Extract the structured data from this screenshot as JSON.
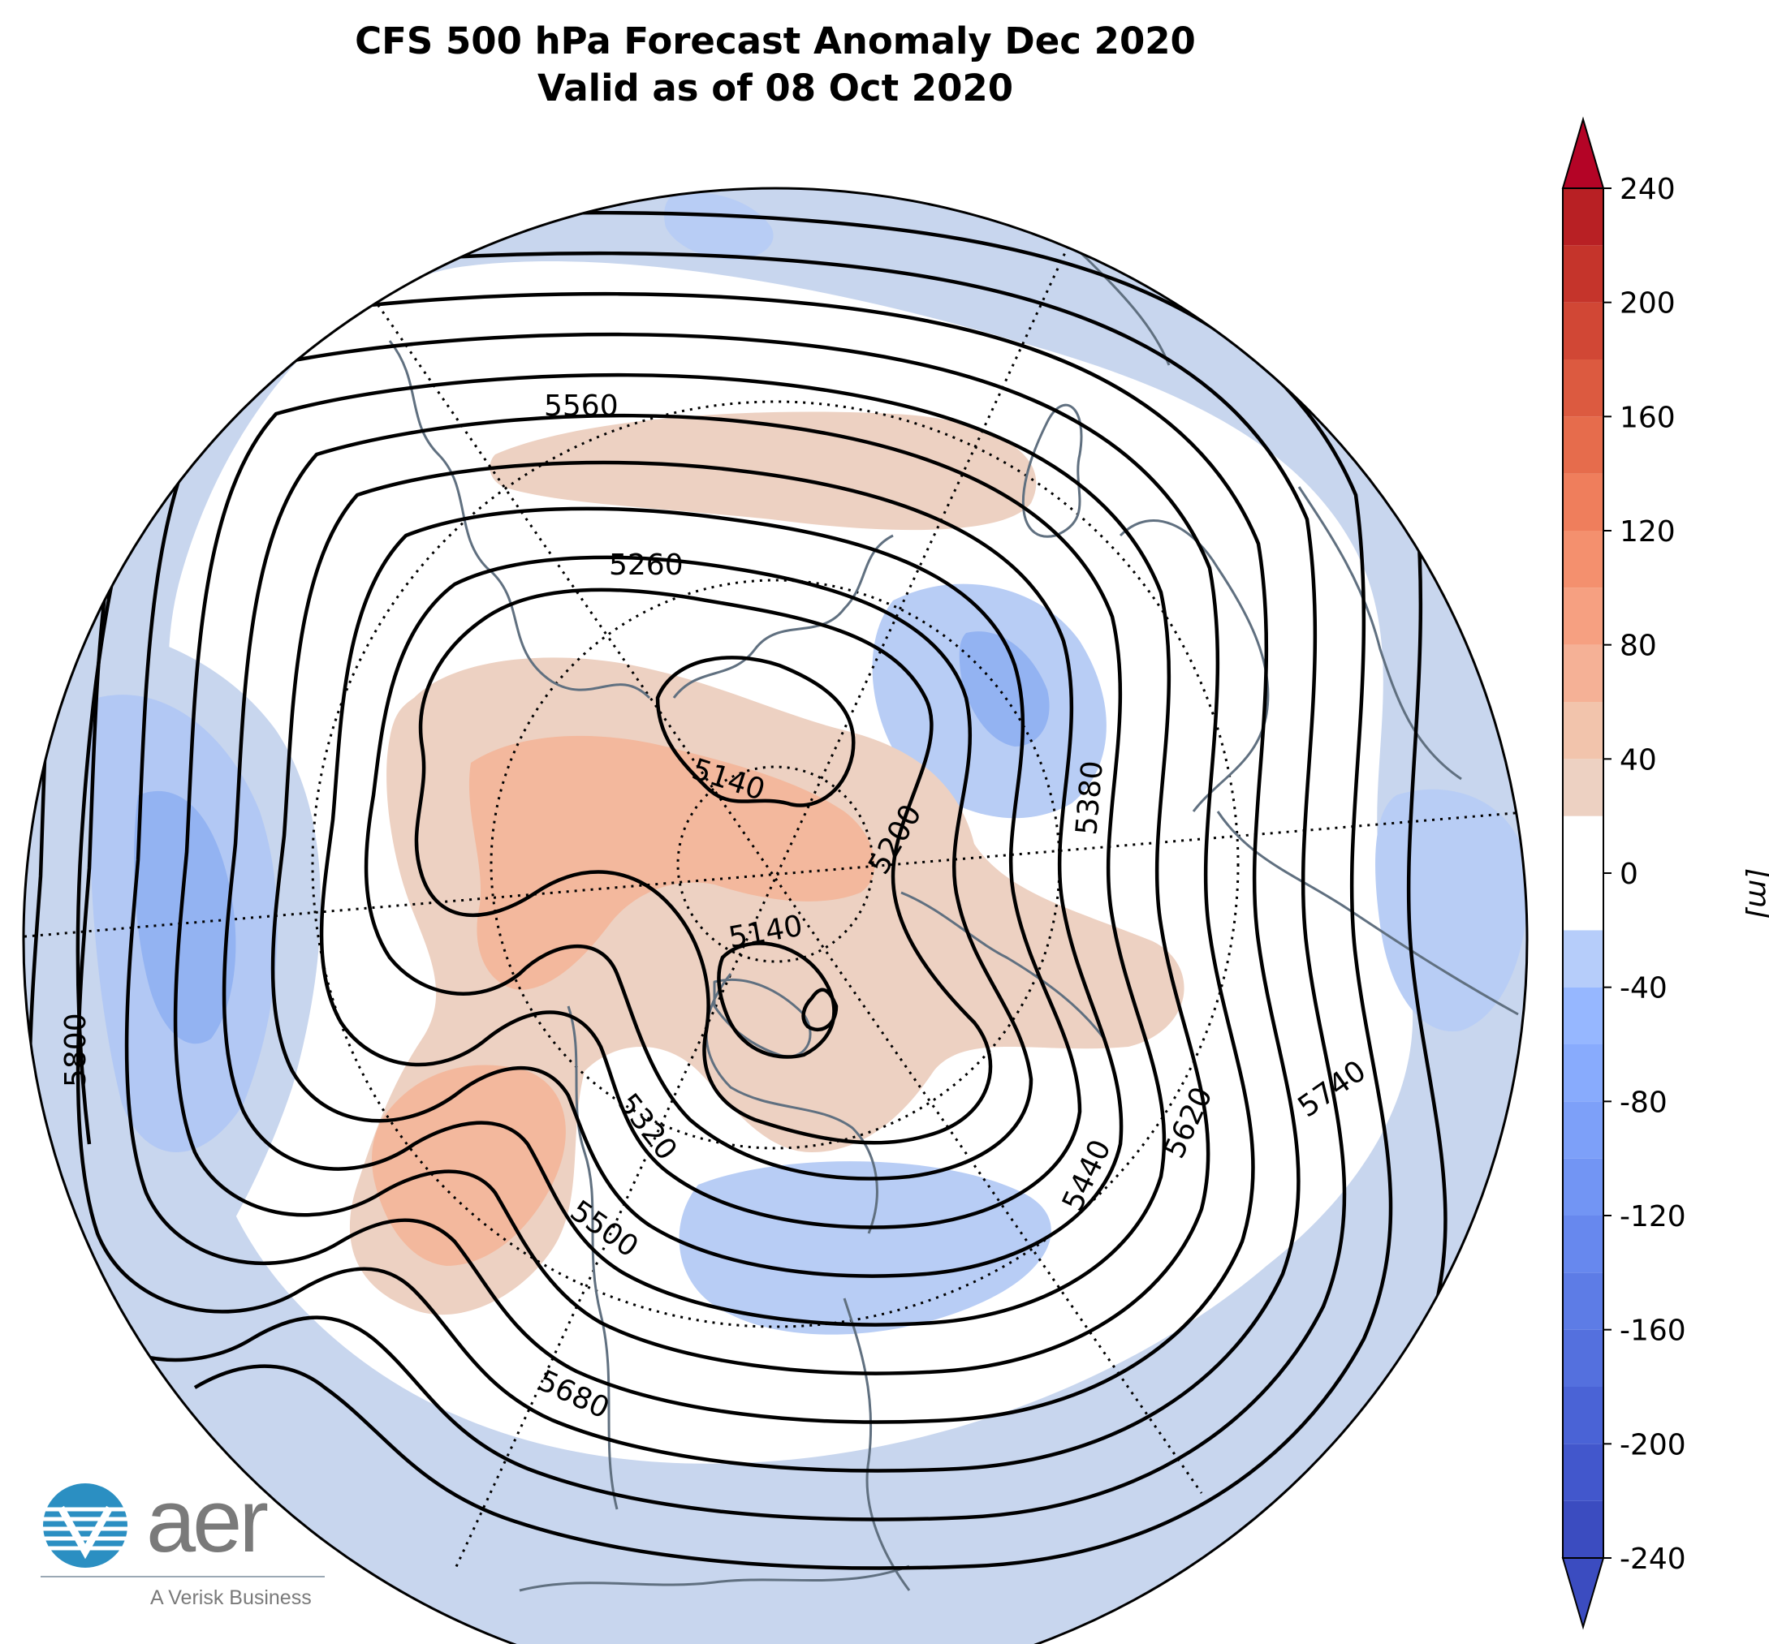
{
  "title": {
    "line1": "CFS 500 hPa Forecast Anomaly Dec 2020",
    "line2": "Valid as of 08 Oct 2020"
  },
  "colorbar": {
    "unit_label": "[m]",
    "tick_labels": [
      "240",
      "200",
      "160",
      "120",
      "80",
      "40",
      "0",
      "-40",
      "-80",
      "-120",
      "-160",
      "-200",
      "-240"
    ],
    "tick_values": [
      240,
      200,
      160,
      120,
      80,
      40,
      0,
      -40,
      -80,
      -120,
      -160,
      -200,
      -240
    ],
    "levels": [
      -240,
      -220,
      -200,
      -180,
      -160,
      -140,
      -120,
      -100,
      -80,
      -60,
      -40,
      -20,
      20,
      40,
      60,
      80,
      100,
      120,
      140,
      160,
      180,
      200,
      220,
      240
    ],
    "colors_negative": [
      "#3b4cc0",
      "#4257cc",
      "#4a63d6",
      "#5470de",
      "#5d7ce6",
      "#6788ee",
      "#7295f4",
      "#7da0f9",
      "#88abfd",
      "#96b7ff",
      "#b6cdfa",
      "#c8d6ee"
    ],
    "colors_positive": [
      "#edd1c2",
      "#f2c4ac",
      "#f5b196",
      "#f6a081",
      "#f4906e",
      "#ef7e5c",
      "#e66c4c",
      "#dc5a40",
      "#d14735",
      "#c5342b",
      "#b82024",
      "#b40426"
    ],
    "extend": "both"
  },
  "map": {
    "projection": "North Polar Stereographic",
    "contour_labels": [
      "5560",
      "5260",
      "5140",
      "5200",
      "5380",
      "5140",
      "5320",
      "5500",
      "5680",
      "5800",
      "5440",
      "5620",
      "5740"
    ],
    "contour_interval_m": 60
  },
  "logo": {
    "wordmark": "aer",
    "tagline": "A Verisk Business"
  },
  "colors": {
    "coastline": "#607080",
    "contour": "#000000",
    "positive_anomaly": "#edd1c2",
    "positive_anomaly_strong": "#f3b89d",
    "negative_anomaly": "#c8d6ee",
    "negative_anomaly_strong": "#8fb0f3",
    "logo_blue": "#2b8fc2"
  }
}
